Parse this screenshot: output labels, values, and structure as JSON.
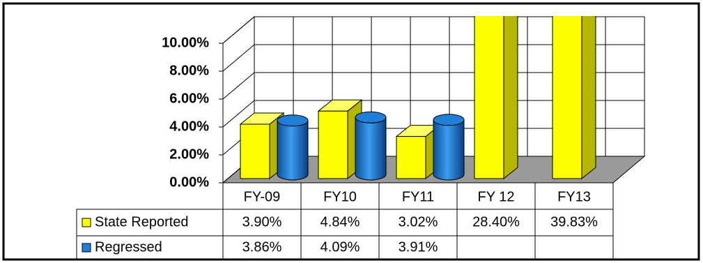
{
  "chart_data": {
    "type": "bar3d",
    "categories": [
      "FY-09",
      "FY10",
      "FY11",
      "FY 12",
      "FY13"
    ],
    "series": [
      {
        "name": "State Reported",
        "color": "#ffff00",
        "values": [
          3.9,
          4.84,
          3.02,
          28.4,
          39.83
        ],
        "value_labels": [
          "3.90%",
          "4.84%",
          "3.02%",
          "28.40%",
          "39.83%"
        ]
      },
      {
        "name": "Regressed",
        "color": "#1f7fd8",
        "values": [
          3.86,
          4.09,
          3.91,
          null,
          null
        ],
        "value_labels": [
          "3.86%",
          "4.09%",
          "3.91%",
          null,
          null
        ]
      }
    ],
    "ylim": [
      0,
      10
    ],
    "yticks": [
      {
        "value": 0,
        "label": "0.00%"
      },
      {
        "value": 2,
        "label": "2.00%"
      },
      {
        "value": 4,
        "label": "4.00%"
      },
      {
        "value": 6,
        "label": "6.00%"
      },
      {
        "value": 8,
        "label": "8.00%"
      },
      {
        "value": 10,
        "label": "10.00%"
      }
    ],
    "grid": true
  }
}
